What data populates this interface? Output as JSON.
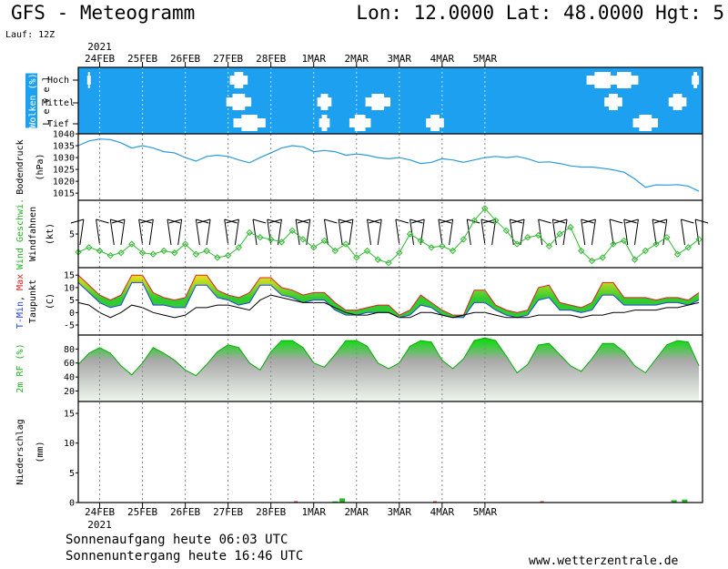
{
  "header": {
    "title": "GFS - Meteogramm",
    "location": "Lon: 12.0000 Lat: 48.0000 Hgt: 5",
    "run": "Lauf: 12Z"
  },
  "footer": {
    "sunrise": "Sonnenaufgang heute 06:03 UTC",
    "sunset": "Sonnenuntergang heute 16:46 UTC",
    "url": "www.wetterzentrale.de"
  },
  "colors": {
    "cloud_bg": "#1ea0f0",
    "pressure_line": "#2a9ad8",
    "wind_line": "#2fb82f",
    "rh_green": "#00d000",
    "tmax": "#e02020",
    "tmin": "#2040e0",
    "warm_fill": "#f0e020",
    "cool_fill": "#30cc30"
  },
  "chart_data": {
    "type": "line",
    "year": "2021",
    "days": [
      "24FEB",
      "25FEB",
      "26FEB",
      "27FEB",
      "28FEB",
      "1MAR",
      "2MAR",
      "3MAR",
      "4MAR",
      "5MAR"
    ],
    "x_unit": "hours from 2021-02-23 12Z",
    "panels": [
      {
        "id": "clouds",
        "ylabel": "Wolken (%)",
        "ylabel2": "L e v e l",
        "levels": [
          "Hoch",
          "Mittel",
          "Tief"
        ],
        "cloud_free_gaps": [
          {
            "level": "Hoch",
            "x": 6,
            "w": 2
          },
          {
            "level": "Hoch",
            "x": 90,
            "w": 10
          },
          {
            "level": "Hoch",
            "x": 294,
            "w": 18
          },
          {
            "level": "Hoch",
            "x": 306,
            "w": 16
          },
          {
            "level": "Hoch",
            "x": 346,
            "w": 4
          },
          {
            "level": "Mittel",
            "x": 90,
            "w": 14
          },
          {
            "level": "Mittel",
            "x": 138,
            "w": 8
          },
          {
            "level": "Mittel",
            "x": 168,
            "w": 14
          },
          {
            "level": "Mittel",
            "x": 300,
            "w": 10
          },
          {
            "level": "Mittel",
            "x": 336,
            "w": 10
          },
          {
            "level": "Tief",
            "x": 96,
            "w": 18
          },
          {
            "level": "Tief",
            "x": 138,
            "w": 6
          },
          {
            "level": "Tief",
            "x": 158,
            "w": 12
          },
          {
            "level": "Tief",
            "x": 200,
            "w": 10
          },
          {
            "level": "Tief",
            "x": 318,
            "w": 14
          }
        ]
      },
      {
        "id": "pressure",
        "ylabel": "Bodendruck",
        "ylabel2": "(hPa)",
        "ylim": [
          1012,
          1040
        ],
        "yticks": [
          1015,
          1020,
          1025,
          1030,
          1035,
          1040
        ],
        "x": [
          0,
          6,
          12,
          18,
          24,
          30,
          36,
          42,
          48,
          54,
          60,
          66,
          72,
          78,
          84,
          90,
          96,
          102,
          108,
          114,
          120,
          126,
          132,
          138,
          144,
          150,
          156,
          162,
          168,
          174,
          180,
          186,
          192,
          198,
          204,
          210,
          216,
          222,
          228,
          234,
          240,
          246,
          252,
          258,
          264,
          270,
          276,
          282,
          288,
          294,
          300,
          306,
          312,
          318,
          324,
          330,
          336,
          342,
          348
        ],
        "values": [
          1035,
          1037,
          1037.8,
          1037.6,
          1036.2,
          1034,
          1035,
          1034,
          1032.5,
          1032,
          1030,
          1028.5,
          1030.5,
          1031,
          1030.5,
          1029,
          1027.8,
          1030,
          1032,
          1034,
          1035,
          1034.5,
          1032.5,
          1033,
          1032.5,
          1031,
          1031.5,
          1031,
          1030,
          1029.5,
          1030,
          1029,
          1027.5,
          1028,
          1029.5,
          1029,
          1028,
          1029,
          1030,
          1030.5,
          1030,
          1030.5,
          1029.5,
          1028,
          1028.2,
          1027.5,
          1026.5,
          1026,
          1026,
          1025.5,
          1024.8,
          1023.8,
          1021,
          1017.5,
          1018.5,
          1018.4,
          1018.6,
          1018,
          1015.8
        ]
      },
      {
        "id": "wind",
        "ylabel": "Wind Geschwi.",
        "ylabel2": "Windfahnen",
        "ylabel3": "(kt)",
        "ylim": [
          0,
          10
        ],
        "yticks": [
          5
        ],
        "x": [
          0,
          6,
          12,
          18,
          24,
          30,
          36,
          42,
          48,
          54,
          60,
          66,
          72,
          78,
          84,
          90,
          96,
          102,
          108,
          114,
          120,
          126,
          132,
          138,
          144,
          150,
          156,
          162,
          168,
          174,
          180,
          186,
          192,
          198,
          204,
          210,
          216,
          222,
          228,
          234,
          240,
          246,
          252,
          258,
          264,
          270,
          276,
          282,
          288,
          294,
          300,
          306,
          312,
          318,
          324,
          330,
          336,
          342,
          348
        ],
        "speed_values": [
          2.3,
          3,
          2.5,
          1.8,
          2.2,
          3.5,
          2.2,
          2,
          2.5,
          2.2,
          3.5,
          2,
          2.5,
          1.5,
          1.8,
          3,
          5.2,
          4.5,
          4.2,
          3.8,
          5.5,
          4.2,
          3,
          4,
          2.5,
          3.5,
          1.5,
          2.5,
          1.2,
          0.7,
          2.2,
          5,
          4,
          3,
          3.2,
          2.5,
          4.2,
          7,
          8.8,
          7,
          5.5,
          3.5,
          4.5,
          4.8,
          3.2,
          5,
          6,
          2.5,
          1,
          1.5,
          3.5,
          4,
          1.2,
          2.5,
          3.5,
          4.5,
          2,
          3,
          4.2
        ],
        "barbs": [
          {
            "x": 3,
            "dir": -1
          },
          {
            "x": 10,
            "dir": 1
          },
          {
            "x": 18,
            "dir": 1
          },
          {
            "x": 26,
            "dir": -1
          },
          {
            "x": 34,
            "dir": 1
          },
          {
            "x": 42,
            "dir": -1
          },
          {
            "x": 50,
            "dir": 1
          },
          {
            "x": 58,
            "dir": -1
          },
          {
            "x": 66,
            "dir": 1
          },
          {
            "x": 74,
            "dir": -1
          },
          {
            "x": 82,
            "dir": 1
          },
          {
            "x": 90,
            "dir": -1
          },
          {
            "x": 98,
            "dir": 1
          },
          {
            "x": 106,
            "dir": 1
          },
          {
            "x": 114,
            "dir": -1
          },
          {
            "x": 122,
            "dir": 1
          },
          {
            "x": 130,
            "dir": -1
          },
          {
            "x": 138,
            "dir": 1
          },
          {
            "x": 146,
            "dir": 1
          },
          {
            "x": 154,
            "dir": -1
          },
          {
            "x": 162,
            "dir": 1
          },
          {
            "x": 170,
            "dir": -1
          },
          {
            "x": 178,
            "dir": 1
          },
          {
            "x": 186,
            "dir": 1
          },
          {
            "x": 194,
            "dir": -1
          },
          {
            "x": 202,
            "dir": 1
          },
          {
            "x": 210,
            "dir": -1
          },
          {
            "x": 218,
            "dir": 1
          },
          {
            "x": 226,
            "dir": 1
          },
          {
            "x": 234,
            "dir": -1
          },
          {
            "x": 242,
            "dir": 1
          },
          {
            "x": 250,
            "dir": -1
          },
          {
            "x": 258,
            "dir": 1
          },
          {
            "x": 266,
            "dir": 1
          },
          {
            "x": 274,
            "dir": -1
          },
          {
            "x": 282,
            "dir": 1
          },
          {
            "x": 290,
            "dir": -1
          },
          {
            "x": 298,
            "dir": 1
          },
          {
            "x": 306,
            "dir": 1
          },
          {
            "x": 314,
            "dir": -1
          },
          {
            "x": 322,
            "dir": 1
          },
          {
            "x": 330,
            "dir": -1
          },
          {
            "x": 338,
            "dir": 1
          },
          {
            "x": 346,
            "dir": 1
          }
        ]
      },
      {
        "id": "temperature",
        "ylabel": "T-Min, Max",
        "ylabel_parts": [
          "T-Min",
          ", ",
          "Max"
        ],
        "ylabel2": "Taupunkt",
        "ylabel3": "(C)",
        "ylim": [
          -9,
          18
        ],
        "yticks": [
          -5,
          0,
          5,
          10,
          15
        ],
        "x": [
          0,
          6,
          12,
          18,
          24,
          30,
          36,
          42,
          48,
          54,
          60,
          66,
          72,
          78,
          84,
          90,
          96,
          102,
          108,
          114,
          120,
          126,
          132,
          138,
          144,
          150,
          156,
          162,
          168,
          174,
          180,
          186,
          192,
          198,
          204,
          210,
          216,
          222,
          228,
          234,
          240,
          246,
          252,
          258,
          264,
          270,
          276,
          282,
          288,
          294,
          300,
          306,
          312,
          318,
          324,
          330,
          336,
          342,
          348
        ],
        "tmax": [
          15,
          11,
          7,
          5,
          7,
          15,
          15,
          8,
          6,
          5,
          6,
          15,
          15,
          9,
          7,
          6,
          8,
          14,
          14,
          10,
          9,
          7,
          8,
          8,
          4,
          1,
          1,
          2,
          3,
          3,
          -1,
          1,
          7,
          4,
          1,
          -1,
          -1,
          9,
          9,
          3,
          1,
          0,
          1,
          10,
          11,
          4,
          3,
          2,
          4,
          12,
          12,
          6,
          6,
          6,
          5,
          6,
          6,
          5,
          8
        ],
        "tmin": [
          12,
          8,
          4,
          2,
          3,
          12,
          12,
          3,
          3,
          2,
          2,
          11,
          11,
          6,
          5,
          3,
          4,
          11,
          11,
          7,
          6,
          4,
          5,
          5,
          1,
          -1,
          -1,
          0,
          0,
          0,
          -2,
          -1,
          3,
          2,
          -1,
          -2,
          -2,
          4,
          4,
          1,
          -1,
          -2,
          -1,
          5,
          6,
          1,
          1,
          0,
          1,
          7,
          7,
          3,
          3,
          3,
          3,
          4,
          4,
          3,
          5
        ],
        "dewpoint": [
          4,
          3,
          0,
          -2,
          0,
          3,
          2,
          0,
          -1,
          -2,
          -1,
          2,
          2,
          3,
          3,
          2,
          1,
          5,
          7,
          6,
          5,
          4,
          4,
          4,
          2,
          0,
          -1,
          -1,
          0,
          0,
          -2,
          -2,
          0,
          0,
          -1,
          -2,
          -1,
          0,
          0,
          -1,
          -2,
          -2,
          -2,
          -1,
          -1,
          -1,
          -1,
          -2,
          -1,
          -1,
          0,
          0,
          1,
          1,
          1,
          2,
          2,
          3,
          4
        ]
      },
      {
        "id": "humidity",
        "ylabel": "2m RF (%)",
        "ylim": [
          5,
          100
        ],
        "yticks": [
          20,
          40,
          60,
          80
        ],
        "x": [
          0,
          6,
          12,
          18,
          24,
          30,
          36,
          42,
          48,
          54,
          60,
          66,
          72,
          78,
          84,
          90,
          96,
          102,
          108,
          114,
          120,
          126,
          132,
          138,
          144,
          150,
          156,
          162,
          168,
          174,
          180,
          186,
          192,
          198,
          204,
          210,
          216,
          222,
          228,
          234,
          240,
          246,
          252,
          258,
          264,
          270,
          276,
          282,
          288,
          294,
          300,
          306,
          312,
          318,
          324,
          330,
          336,
          342,
          348
        ],
        "values": [
          58,
          74,
          82,
          74,
          56,
          43,
          60,
          82,
          74,
          64,
          50,
          42,
          58,
          76,
          86,
          82,
          60,
          50,
          76,
          92,
          92,
          82,
          60,
          54,
          72,
          92,
          92,
          84,
          60,
          52,
          60,
          84,
          92,
          90,
          64,
          52,
          66,
          92,
          96,
          92,
          70,
          46,
          58,
          86,
          88,
          72,
          56,
          48,
          66,
          88,
          88,
          76,
          56,
          46,
          66,
          86,
          92,
          90,
          56
        ]
      },
      {
        "id": "precipitation",
        "ylabel": "Niederschlag",
        "ylabel2": "(mm)",
        "ylim": [
          0,
          17
        ],
        "yticks": [
          0,
          5,
          10,
          15
        ],
        "bars": [
          {
            "x": 144,
            "value": 0.2
          },
          {
            "x": 148,
            "value": 0.7
          },
          {
            "x": 334,
            "value": 0.4
          },
          {
            "x": 340,
            "value": 0.5
          }
        ],
        "trace": [
          {
            "x": 122,
            "value": 0.1
          },
          {
            "x": 200,
            "value": 0.1
          },
          {
            "x": 260,
            "value": 0.1
          }
        ]
      }
    ]
  }
}
